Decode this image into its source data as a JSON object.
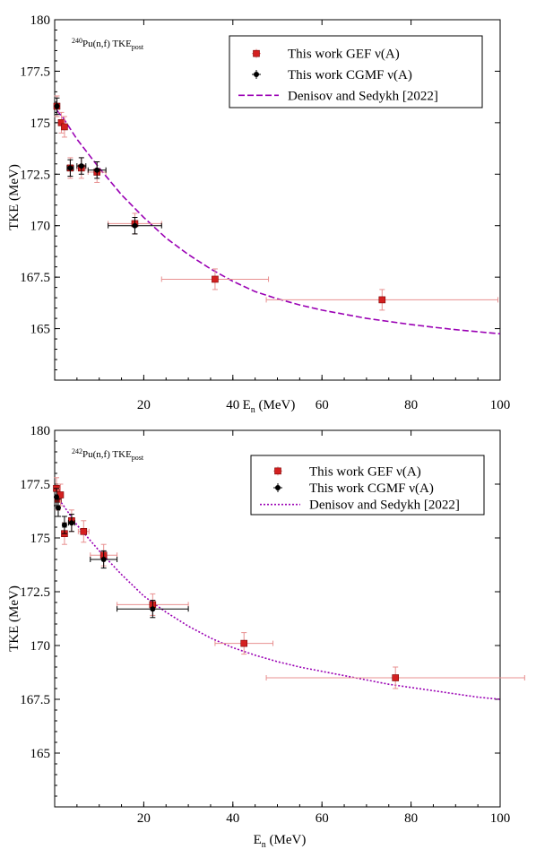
{
  "colors": {
    "gef": "#d42020",
    "gef_err": "#e89090",
    "cgmf": "#000000",
    "denisov": "#9a00b4"
  },
  "chart_data": [
    {
      "type": "scatter",
      "annotation": {
        "main": "Pu(n,f) TKE",
        "sup": "240",
        "sub": "post"
      },
      "xlabel": {
        "main": "E",
        "sub": "n",
        "rest": " (MeV)"
      },
      "ylabel": "TKE (MeV)",
      "xlim": [
        0,
        100
      ],
      "ylim": [
        162.5,
        180
      ],
      "x_ticks": [
        "20",
        "40",
        "60",
        "80",
        "100"
      ],
      "y_ticks": [
        "165",
        "167.5",
        "170",
        "172.5",
        "175",
        "177.5",
        "180"
      ],
      "legend": {
        "position": "top-right",
        "entries": [
          "This work GEF ν(A)",
          "This work CGMF ν(A)",
          "Denisov and Sedykh [2022]"
        ]
      },
      "curve": {
        "name": "Denisov and Sedykh [2022]",
        "style": "dashed",
        "x": [
          0.5,
          2,
          5,
          10,
          15,
          20,
          25,
          30,
          35,
          40,
          45,
          50,
          55,
          60,
          65,
          70,
          75,
          80,
          85,
          90,
          95,
          100
        ],
        "y": [
          175.6,
          175.2,
          174.2,
          172.8,
          171.5,
          170.4,
          169.4,
          168.6,
          167.9,
          167.3,
          166.8,
          166.45,
          166.15,
          165.9,
          165.7,
          165.5,
          165.35,
          165.2,
          165.07,
          164.95,
          164.85,
          164.75
        ]
      },
      "series": [
        {
          "name": "This work GEF ν(A)",
          "marker": "square",
          "points": [
            {
              "x": 0.5,
              "y": 175.8,
              "xerr": 0.3,
              "yerr": 0.5
            },
            {
              "x": 1.5,
              "y": 175.0,
              "xerr": 0.3,
              "yerr": 0.5
            },
            {
              "x": 2.2,
              "y": 174.8,
              "xerr": 0.3,
              "yerr": 0.5
            },
            {
              "x": 3.5,
              "y": 172.8,
              "xerr": 0.7,
              "yerr": 0.5
            },
            {
              "x": 6.0,
              "y": 172.8,
              "xerr": 1.0,
              "yerr": 0.5
            },
            {
              "x": 9.5,
              "y": 172.6,
              "xerr": 2.0,
              "yerr": 0.5
            },
            {
              "x": 18.0,
              "y": 170.1,
              "xerr": 6.0,
              "yerr": 0.5
            },
            {
              "x": 36.0,
              "y": 167.4,
              "xerr": 12.0,
              "yerr": 0.5
            },
            {
              "x": 73.5,
              "y": 166.4,
              "xerr": 26.0,
              "yerr": 0.5
            }
          ]
        },
        {
          "name": "This work CGMF ν(A)",
          "marker": "circle",
          "points": [
            {
              "x": 0.5,
              "y": 175.8,
              "xerr": 0.3,
              "yerr": 0.4
            },
            {
              "x": 3.5,
              "y": 172.8,
              "xerr": 0.7,
              "yerr": 0.4
            },
            {
              "x": 6.0,
              "y": 172.9,
              "xerr": 1.0,
              "yerr": 0.4
            },
            {
              "x": 9.5,
              "y": 172.7,
              "xerr": 2.0,
              "yerr": 0.4
            },
            {
              "x": 18.0,
              "y": 170.0,
              "xerr": 6.0,
              "yerr": 0.4
            }
          ]
        }
      ]
    },
    {
      "type": "scatter",
      "annotation": {
        "main": "Pu(n,f) TKE",
        "sup": "242",
        "sub": "post"
      },
      "xlabel": {
        "main": "E",
        "sub": "n",
        "rest": " (MeV)"
      },
      "ylabel": "TKE (MeV)",
      "xlim": [
        0,
        100
      ],
      "ylim": [
        162.5,
        180
      ],
      "x_ticks": [
        "20",
        "40",
        "60",
        "80",
        "100"
      ],
      "y_ticks": [
        "165",
        "167.5",
        "170",
        "172.5",
        "175",
        "177.5",
        "180"
      ],
      "legend": {
        "position": "top-right",
        "entries": [
          "This work GEF ν(A)",
          "This work CGMF ν(A)",
          "Denisov and Sedykh [2022]"
        ]
      },
      "curve": {
        "name": "Denisov and Sedykh [2022]",
        "style": "dotted",
        "x": [
          0.5,
          2,
          5,
          10,
          15,
          20,
          25,
          30,
          35,
          40,
          45,
          50,
          55,
          60,
          65,
          70,
          75,
          80,
          85,
          90,
          95,
          100
        ],
        "y": [
          176.9,
          176.5,
          175.6,
          174.4,
          173.3,
          172.3,
          171.55,
          170.9,
          170.35,
          169.9,
          169.55,
          169.25,
          169.0,
          168.8,
          168.6,
          168.4,
          168.2,
          168.05,
          167.9,
          167.75,
          167.6,
          167.5
        ]
      },
      "series": [
        {
          "name": "This work GEF ν(A)",
          "marker": "square",
          "points": [
            {
              "x": 0.4,
              "y": 177.3,
              "xerr": 0.3,
              "yerr": 0.5
            },
            {
              "x": 0.8,
              "y": 176.8,
              "xerr": 0.3,
              "yerr": 0.5
            },
            {
              "x": 1.3,
              "y": 177.0,
              "xerr": 0.3,
              "yerr": 0.5
            },
            {
              "x": 2.2,
              "y": 175.2,
              "xerr": 0.4,
              "yerr": 0.5
            },
            {
              "x": 3.8,
              "y": 175.8,
              "xerr": 0.7,
              "yerr": 0.5
            },
            {
              "x": 6.5,
              "y": 175.3,
              "xerr": 1.2,
              "yerr": 0.5
            },
            {
              "x": 11.0,
              "y": 174.2,
              "xerr": 3.0,
              "yerr": 0.5
            },
            {
              "x": 22.0,
              "y": 171.9,
              "xerr": 8.0,
              "yerr": 0.5
            },
            {
              "x": 42.5,
              "y": 170.1,
              "xerr": 6.5,
              "yerr": 0.5
            },
            {
              "x": 76.5,
              "y": 168.5,
              "xerr": 29.0,
              "yerr": 0.5
            }
          ]
        },
        {
          "name": "This work CGMF ν(A)",
          "marker": "circle",
          "points": [
            {
              "x": 0.4,
              "y": 176.9,
              "xerr": 0.3,
              "yerr": 0.4
            },
            {
              "x": 0.8,
              "y": 176.4,
              "xerr": 0.3,
              "yerr": 0.4
            },
            {
              "x": 2.2,
              "y": 175.6,
              "xerr": 0.4,
              "yerr": 0.4
            },
            {
              "x": 3.8,
              "y": 175.7,
              "xerr": 0.7,
              "yerr": 0.4
            },
            {
              "x": 11.0,
              "y": 174.0,
              "xerr": 3.0,
              "yerr": 0.4
            },
            {
              "x": 22.0,
              "y": 171.7,
              "xerr": 8.0,
              "yerr": 0.4
            }
          ]
        }
      ]
    }
  ]
}
